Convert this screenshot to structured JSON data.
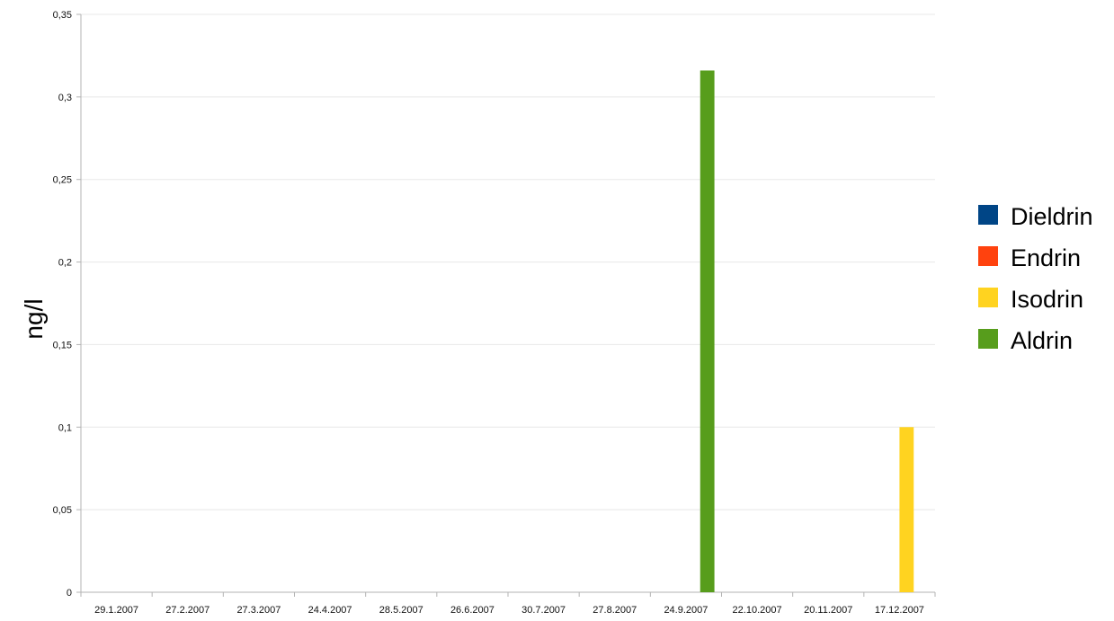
{
  "chart_data": {
    "type": "bar",
    "ylabel": "ng/l",
    "ylim": [
      0,
      0.35
    ],
    "yticks": [
      "0",
      "0,05",
      "0,1",
      "0,15",
      "0,2",
      "0,25",
      "0,3",
      "0,35"
    ],
    "ytick_values": [
      0,
      0.05,
      0.1,
      0.15,
      0.2,
      0.25,
      0.3,
      0.35
    ],
    "grid": true,
    "legend_position": "right",
    "categories": [
      "29.1.2007",
      "27.2.2007",
      "27.3.2007",
      "24.4.2007",
      "28.5.2007",
      "26.6.2007",
      "30.7.2007",
      "27.8.2007",
      "24.9.2007",
      "22.10.2007",
      "20.11.2007",
      "17.12.2007"
    ],
    "series": [
      {
        "name": "Dieldrin",
        "color": "#004586",
        "values": [
          0,
          0,
          0,
          0,
          0,
          0,
          0,
          0,
          0,
          0,
          0,
          0
        ]
      },
      {
        "name": "Endrin",
        "color": "#ff420e",
        "values": [
          0,
          0,
          0,
          0,
          0,
          0,
          0,
          0,
          0,
          0,
          0,
          0
        ]
      },
      {
        "name": "Isodrin",
        "color": "#ffd320",
        "values": [
          0,
          0,
          0,
          0,
          0,
          0,
          0,
          0,
          0,
          0,
          0,
          0.1
        ]
      },
      {
        "name": "Aldrin",
        "color": "#579d1c",
        "values": [
          0,
          0,
          0,
          0,
          0,
          0,
          0,
          0,
          0.316,
          0,
          0,
          0
        ]
      }
    ]
  }
}
